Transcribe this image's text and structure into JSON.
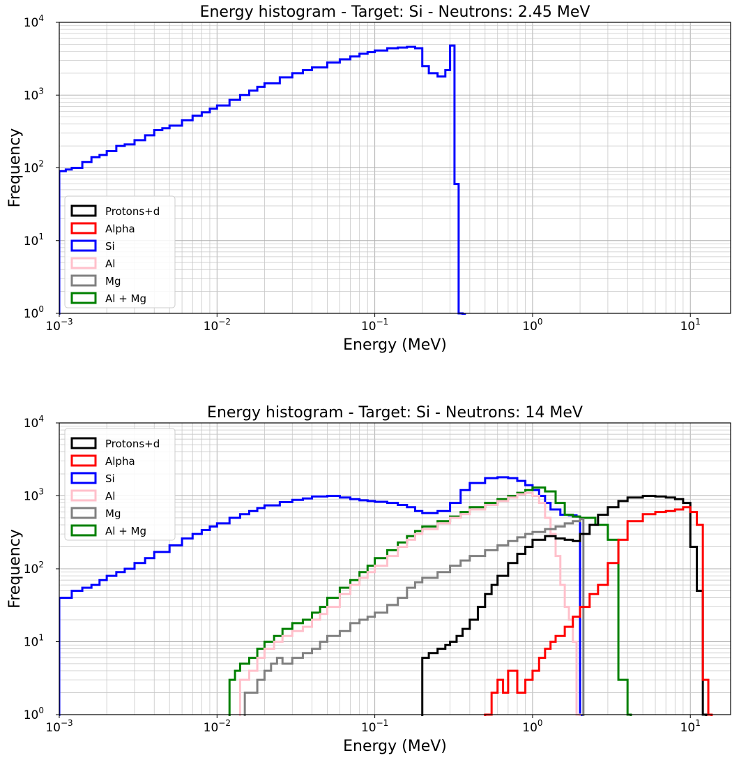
{
  "chart_data": [
    {
      "type": "histogram-step",
      "title": "Energy histogram - Target: Si - Neutrons: 2.45 MeV",
      "xlabel": "Energy (MeV)",
      "ylabel": "Frequency",
      "xscale": "log",
      "yscale": "log",
      "xlim": [
        0.001,
        18
      ],
      "ylim": [
        1,
        10000
      ],
      "x_ticks": [
        {
          "base": "10",
          "exp": "−3",
          "value": 0.001
        },
        {
          "base": "10",
          "exp": "−2",
          "value": 0.01
        },
        {
          "base": "10",
          "exp": "−1",
          "value": 0.1
        },
        {
          "base": "10",
          "exp": "0",
          "value": 1
        },
        {
          "base": "10",
          "exp": "1",
          "value": 10
        }
      ],
      "y_ticks": [
        {
          "base": "10",
          "exp": "0",
          "value": 1
        },
        {
          "base": "10",
          "exp": "1",
          "value": 10
        },
        {
          "base": "10",
          "exp": "2",
          "value": 100
        },
        {
          "base": "10",
          "exp": "3",
          "value": 1000
        },
        {
          "base": "10",
          "exp": "4",
          "value": 10000
        }
      ],
      "grid": true,
      "legend_position": "lower-left",
      "legend": [
        {
          "label": "Protons+d",
          "color": "#000000"
        },
        {
          "label": "Alpha",
          "color": "#ff0000"
        },
        {
          "label": "Si",
          "color": "#0000ff"
        },
        {
          "label": "Al",
          "color": "#ffc0cb"
        },
        {
          "label": "Mg",
          "color": "#808080"
        },
        {
          "label": "Al + Mg",
          "color": "#008000"
        }
      ],
      "series": [
        {
          "name": "Si",
          "color": "#0000ff",
          "x": [
            0.001,
            0.0011,
            0.0012,
            0.0014,
            0.0016,
            0.0018,
            0.002,
            0.0023,
            0.0026,
            0.003,
            0.0035,
            0.004,
            0.0045,
            0.005,
            0.006,
            0.007,
            0.008,
            0.009,
            0.01,
            0.012,
            0.014,
            0.016,
            0.018,
            0.02,
            0.025,
            0.03,
            0.035,
            0.04,
            0.05,
            0.06,
            0.07,
            0.08,
            0.09,
            0.1,
            0.12,
            0.14,
            0.16,
            0.18,
            0.2,
            0.22,
            0.25,
            0.28,
            0.3,
            0.32,
            0.34,
            0.36
          ],
          "y": [
            90,
            95,
            100,
            120,
            140,
            150,
            170,
            200,
            210,
            240,
            280,
            330,
            350,
            380,
            450,
            520,
            580,
            650,
            720,
            860,
            1000,
            1150,
            1300,
            1450,
            1750,
            2000,
            2200,
            2400,
            2800,
            3100,
            3400,
            3700,
            3900,
            4100,
            4400,
            4500,
            4600,
            4400,
            2500,
            2000,
            1800,
            2200,
            4800,
            60,
            1,
            0
          ]
        }
      ]
    },
    {
      "type": "histogram-step",
      "title": "Energy histogram - Target: Si - Neutrons: 14 MeV",
      "xlabel": "Energy (MeV)",
      "ylabel": "Frequency",
      "xscale": "log",
      "yscale": "log",
      "xlim": [
        0.001,
        18
      ],
      "ylim": [
        1,
        10000
      ],
      "x_ticks": [
        {
          "base": "10",
          "exp": "−3",
          "value": 0.001
        },
        {
          "base": "10",
          "exp": "−2",
          "value": 0.01
        },
        {
          "base": "10",
          "exp": "−1",
          "value": 0.1
        },
        {
          "base": "10",
          "exp": "0",
          "value": 1
        },
        {
          "base": "10",
          "exp": "1",
          "value": 10
        }
      ],
      "y_ticks": [
        {
          "base": "10",
          "exp": "0",
          "value": 1
        },
        {
          "base": "10",
          "exp": "1",
          "value": 10
        },
        {
          "base": "10",
          "exp": "2",
          "value": 100
        },
        {
          "base": "10",
          "exp": "3",
          "value": 1000
        },
        {
          "base": "10",
          "exp": "4",
          "value": 10000
        }
      ],
      "grid": true,
      "legend_position": "upper-left",
      "legend": [
        {
          "label": "Protons+d",
          "color": "#000000"
        },
        {
          "label": "Alpha",
          "color": "#ff0000"
        },
        {
          "label": "Si",
          "color": "#0000ff"
        },
        {
          "label": "Al",
          "color": "#ffc0cb"
        },
        {
          "label": "Mg",
          "color": "#808080"
        },
        {
          "label": "Al + Mg",
          "color": "#008000"
        }
      ],
      "series": [
        {
          "name": "Si",
          "color": "#0000ff",
          "x": [
            0.001,
            0.0012,
            0.0014,
            0.0016,
            0.0018,
            0.002,
            0.0023,
            0.0026,
            0.003,
            0.0035,
            0.004,
            0.005,
            0.006,
            0.007,
            0.008,
            0.009,
            0.01,
            0.012,
            0.014,
            0.016,
            0.018,
            0.02,
            0.025,
            0.03,
            0.035,
            0.04,
            0.05,
            0.06,
            0.07,
            0.08,
            0.09,
            0.1,
            0.12,
            0.14,
            0.16,
            0.18,
            0.2,
            0.25,
            0.3,
            0.35,
            0.4,
            0.5,
            0.6,
            0.7,
            0.8,
            0.9,
            1.0,
            1.1,
            1.2,
            1.3,
            1.5,
            1.7,
            1.9,
            2.0
          ],
          "y": [
            40,
            50,
            55,
            60,
            70,
            80,
            90,
            100,
            120,
            140,
            170,
            210,
            260,
            300,
            340,
            380,
            420,
            500,
            560,
            620,
            680,
            740,
            820,
            880,
            920,
            980,
            1000,
            950,
            900,
            870,
            850,
            830,
            800,
            750,
            700,
            620,
            580,
            620,
            800,
            1200,
            1500,
            1750,
            1800,
            1750,
            1600,
            1400,
            1200,
            1000,
            800,
            650,
            550,
            540,
            520,
            0
          ]
        },
        {
          "name": "Al + Mg",
          "color": "#008000",
          "x": [
            0.012,
            0.013,
            0.014,
            0.016,
            0.018,
            0.02,
            0.023,
            0.026,
            0.03,
            0.035,
            0.04,
            0.045,
            0.05,
            0.06,
            0.07,
            0.08,
            0.09,
            0.1,
            0.12,
            0.14,
            0.16,
            0.18,
            0.2,
            0.25,
            0.3,
            0.35,
            0.4,
            0.5,
            0.6,
            0.7,
            0.8,
            0.9,
            1.0,
            1.2,
            1.4,
            1.6,
            1.8,
            2.0,
            2.5,
            3.0,
            3.5,
            4.0
          ],
          "y": [
            3,
            4,
            5,
            6,
            8,
            10,
            12,
            15,
            18,
            20,
            25,
            30,
            40,
            55,
            70,
            90,
            110,
            140,
            180,
            230,
            280,
            330,
            380,
            450,
            520,
            600,
            700,
            800,
            900,
            1000,
            1100,
            1200,
            1300,
            1150,
            800,
            550,
            520,
            500,
            400,
            250,
            3,
            1
          ]
        },
        {
          "name": "Al",
          "color": "#ffc0cb",
          "x": [
            0.014,
            0.016,
            0.018,
            0.02,
            0.023,
            0.026,
            0.03,
            0.035,
            0.04,
            0.045,
            0.05,
            0.06,
            0.07,
            0.08,
            0.09,
            0.1,
            0.12,
            0.14,
            0.16,
            0.18,
            0.2,
            0.25,
            0.3,
            0.35,
            0.4,
            0.5,
            0.6,
            0.7,
            0.8,
            0.9,
            1.0,
            1.1,
            1.2,
            1.3,
            1.4,
            1.5,
            1.6,
            1.7,
            1.8,
            1.9
          ],
          "y": [
            3,
            4,
            6,
            8,
            10,
            12,
            14,
            16,
            20,
            24,
            30,
            45,
            60,
            75,
            90,
            110,
            150,
            200,
            250,
            300,
            350,
            420,
            500,
            560,
            650,
            750,
            850,
            950,
            1050,
            1100,
            1000,
            800,
            500,
            300,
            150,
            60,
            30,
            20,
            10,
            1
          ]
        },
        {
          "name": "Mg",
          "color": "#808080",
          "x": [
            0.015,
            0.016,
            0.018,
            0.02,
            0.022,
            0.024,
            0.026,
            0.03,
            0.035,
            0.04,
            0.045,
            0.05,
            0.06,
            0.07,
            0.08,
            0.09,
            0.1,
            0.12,
            0.14,
            0.16,
            0.18,
            0.2,
            0.25,
            0.3,
            0.35,
            0.4,
            0.5,
            0.6,
            0.7,
            0.8,
            0.9,
            1.0,
            1.2,
            1.4,
            1.6,
            1.8,
            2.0
          ],
          "y": [
            2,
            2,
            3,
            4,
            5,
            6,
            5,
            6,
            7,
            8,
            10,
            12,
            14,
            18,
            20,
            22,
            25,
            32,
            40,
            55,
            65,
            75,
            90,
            110,
            130,
            150,
            180,
            210,
            240,
            270,
            300,
            320,
            350,
            380,
            420,
            450,
            480
          ]
        },
        {
          "name": "Protons+d",
          "color": "#000000",
          "x": [
            0.2,
            0.22,
            0.25,
            0.28,
            0.3,
            0.33,
            0.36,
            0.4,
            0.45,
            0.5,
            0.55,
            0.6,
            0.7,
            0.8,
            0.9,
            1.0,
            1.2,
            1.4,
            1.6,
            1.8,
            2.0,
            2.3,
            2.6,
            3.0,
            3.5,
            4.0,
            5.0,
            6.0,
            7.0,
            8.0,
            9.0,
            10.0,
            11.0,
            12.0
          ],
          "y": [
            6,
            7,
            8,
            9,
            10,
            12,
            15,
            20,
            30,
            45,
            60,
            80,
            120,
            160,
            200,
            250,
            280,
            260,
            250,
            240,
            300,
            400,
            550,
            700,
            850,
            950,
            1000,
            980,
            950,
            900,
            800,
            200,
            50,
            1
          ]
        },
        {
          "name": "Alpha",
          "color": "#ff0000",
          "x": [
            0.5,
            0.55,
            0.6,
            0.65,
            0.7,
            0.8,
            0.9,
            1.0,
            1.1,
            1.2,
            1.3,
            1.4,
            1.6,
            1.8,
            2.0,
            2.3,
            2.6,
            3.0,
            3.5,
            4.0,
            5.0,
            6.0,
            7.0,
            8.0,
            9.0,
            10.0,
            11.0,
            12.0,
            13.0
          ],
          "y": [
            1,
            2,
            3,
            2,
            4,
            2,
            3,
            4,
            6,
            8,
            10,
            12,
            16,
            22,
            30,
            45,
            60,
            120,
            250,
            450,
            560,
            600,
            620,
            650,
            700,
            600,
            400,
            3,
            1
          ]
        }
      ]
    }
  ]
}
